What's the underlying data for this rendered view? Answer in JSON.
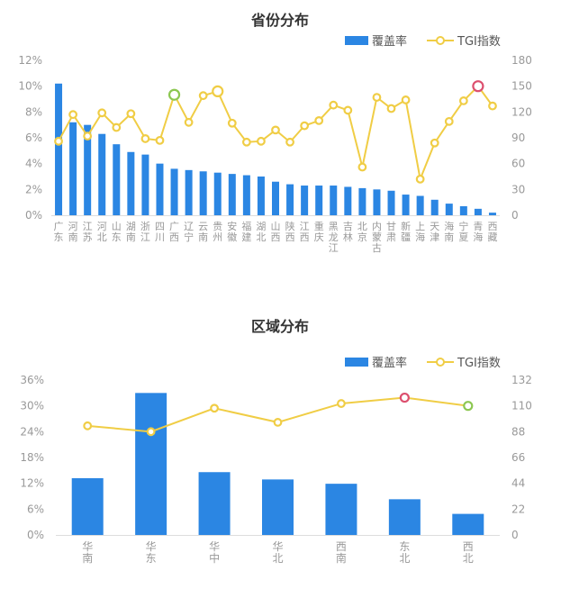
{
  "colors": {
    "bar": "#2b86e3",
    "line": "#f0cd45",
    "marker_fill": "#ffffff",
    "highlight_green": "#8cc751",
    "highlight_red": "#dc4f6e",
    "axis_text": "#999999",
    "title_text": "#333333",
    "legend_text": "#555555"
  },
  "chart_data": [
    {
      "type": "bar",
      "title": "省份分布",
      "legend": [
        "覆盖率",
        "TGI指数"
      ],
      "legend_placement": "top-right",
      "categories": [
        "广东",
        "河南",
        "江苏",
        "河北",
        "山东",
        "湖南",
        "浙江",
        "四川",
        "广西",
        "辽宁",
        "云南",
        "贵州",
        "安徽",
        "福建",
        "湖北",
        "山西",
        "陕西",
        "江西",
        "重庆",
        "黑龙江",
        "吉林",
        "北京",
        "内蒙古",
        "甘肃",
        "新疆",
        "上海",
        "天津",
        "海南",
        "宁夏",
        "青海",
        "西藏"
      ],
      "series": [
        {
          "name": "覆盖率",
          "type": "bar",
          "axis": "left",
          "unit": "%",
          "values": [
            10.2,
            7.2,
            7.0,
            6.3,
            5.5,
            4.9,
            4.7,
            4.0,
            3.6,
            3.5,
            3.4,
            3.3,
            3.2,
            3.1,
            3.0,
            2.6,
            2.4,
            2.3,
            2.3,
            2.3,
            2.2,
            2.1,
            2.0,
            1.9,
            1.6,
            1.5,
            1.2,
            0.9,
            0.7,
            0.5,
            0.2
          ]
        },
        {
          "name": "TGI指数",
          "type": "line",
          "axis": "right",
          "values": [
            86,
            117,
            92,
            119,
            102,
            118,
            89,
            87,
            140,
            108,
            139,
            144,
            107,
            85,
            86,
            99,
            85,
            104,
            110,
            128,
            122,
            56,
            137,
            124,
            134,
            42,
            84,
            109,
            133,
            150,
            127
          ],
          "highlight": {
            "green": [
              8
            ],
            "red": [
              29
            ],
            "large": [
              11
            ]
          }
        }
      ],
      "y_left": {
        "min": 0,
        "max": 12,
        "step": 2,
        "ticks": [
          "0%",
          "2%",
          "4%",
          "6%",
          "8%",
          "10%",
          "12%"
        ]
      },
      "y_right": {
        "min": 0,
        "max": 180,
        "step": 30,
        "ticks": [
          "0",
          "30",
          "60",
          "90",
          "120",
          "150",
          "180"
        ]
      },
      "grid": false
    },
    {
      "type": "bar",
      "title": "区域分布",
      "legend": [
        "覆盖率",
        "TGI指数"
      ],
      "legend_placement": "top-right",
      "categories": [
        "华南",
        "华东",
        "华中",
        "华北",
        "西南",
        "东北",
        "西北"
      ],
      "series": [
        {
          "name": "覆盖率",
          "type": "bar",
          "axis": "left",
          "unit": "%",
          "values": [
            13.2,
            33.0,
            14.6,
            12.9,
            11.9,
            8.3,
            4.9
          ]
        },
        {
          "name": "TGI指数",
          "type": "line",
          "axis": "right",
          "values": [
            93,
            88,
            108,
            96,
            112,
            117,
            110
          ],
          "highlight": {
            "green": [
              6
            ],
            "red": [
              5
            ],
            "large": []
          }
        }
      ],
      "y_left": {
        "min": 0,
        "max": 36,
        "step": 6,
        "ticks": [
          "0%",
          "6%",
          "12%",
          "18%",
          "24%",
          "30%",
          "36%"
        ]
      },
      "y_right": {
        "min": 0,
        "max": 132,
        "step": 22,
        "ticks": [
          "0",
          "22",
          "44",
          "66",
          "88",
          "110",
          "132"
        ]
      },
      "grid": false
    }
  ]
}
